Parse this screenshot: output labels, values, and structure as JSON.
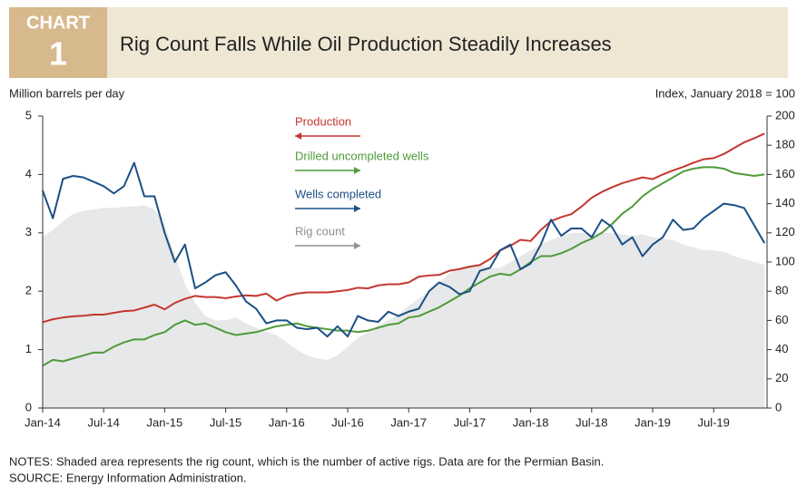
{
  "chart_data": {
    "type": "line",
    "chart_label": "CHART",
    "chart_number": "1",
    "title": "Rig Count Falls While Oil Production Steadily Increases",
    "y_label": "Million barrels per day",
    "y2_label": "Index, January 2018 = 100",
    "categories": [
      "Jan-14",
      null,
      null,
      null,
      null,
      null,
      "Jul-14",
      null,
      null,
      null,
      null,
      null,
      "Jan-15",
      null,
      null,
      null,
      null,
      null,
      "Jul-15",
      null,
      null,
      null,
      null,
      null,
      "Jan-16",
      null,
      null,
      null,
      null,
      null,
      "Jul-16",
      null,
      null,
      null,
      null,
      null,
      "Jan-17",
      null,
      null,
      null,
      null,
      null,
      "Jul-17",
      null,
      null,
      null,
      null,
      null,
      "Jan-18",
      null,
      null,
      null,
      null,
      null,
      "Jul-18",
      null,
      null,
      null,
      null,
      null,
      "Jan-19",
      null,
      null,
      null,
      null,
      null,
      "Jul-19",
      null,
      null,
      null,
      null,
      null
    ],
    "ylim": [
      0,
      5
    ],
    "yticks": [
      0,
      1,
      2,
      3,
      4,
      5
    ],
    "y2lim": [
      0,
      200
    ],
    "y2ticks": [
      0,
      20,
      40,
      60,
      80,
      100,
      120,
      140,
      160,
      180,
      200
    ],
    "series": [
      {
        "name": "Production",
        "color": "#c4372f",
        "legend_arrow": "left",
        "values": [
          1.47,
          1.52,
          1.55,
          1.57,
          1.58,
          1.6,
          1.6,
          1.63,
          1.66,
          1.67,
          1.72,
          1.77,
          1.69,
          1.8,
          1.87,
          1.92,
          1.9,
          1.9,
          1.88,
          1.91,
          1.93,
          1.92,
          1.96,
          1.84,
          1.92,
          1.96,
          1.98,
          1.98,
          1.98,
          2.0,
          2.02,
          2.06,
          2.05,
          2.1,
          2.12,
          2.12,
          2.15,
          2.25,
          2.27,
          2.28,
          2.35,
          2.38,
          2.42,
          2.45,
          2.55,
          2.7,
          2.78,
          2.88,
          2.86,
          3.05,
          3.2,
          3.27,
          3.32,
          3.45,
          3.6,
          3.7,
          3.78,
          3.85,
          3.9,
          3.95,
          3.92,
          4.0,
          4.07,
          4.13,
          4.2,
          4.26,
          4.28,
          4.35,
          4.45,
          4.55,
          4.62,
          4.7
        ]
      },
      {
        "name": "Drilled uncompleted wells",
        "color": "#4f9a3a",
        "axis": "y2",
        "legend_arrow": "right",
        "values": [
          29,
          33,
          32,
          34,
          36,
          38,
          38,
          42,
          45,
          47,
          47,
          50,
          52,
          57,
          60,
          57,
          58,
          55,
          52,
          50,
          51,
          52,
          54,
          56,
          57,
          58,
          56,
          55,
          54,
          53,
          53,
          52,
          53,
          55,
          57,
          58,
          62,
          63,
          66,
          69,
          73,
          77,
          82,
          86,
          90,
          92,
          91,
          95,
          100,
          104,
          104,
          106,
          109,
          113,
          116,
          120,
          126,
          133,
          138,
          145,
          150,
          154,
          158,
          162,
          164,
          165,
          165,
          164,
          161,
          160,
          159,
          160
        ]
      },
      {
        "name": "Wells completed",
        "color": "#1b4f86",
        "axis": "y2",
        "legend_arrow": "right",
        "values": [
          149,
          130,
          157,
          159,
          158,
          155,
          152,
          147,
          152,
          168,
          145,
          145,
          120,
          100,
          112,
          82,
          86,
          91,
          93,
          84,
          73,
          68,
          58,
          60,
          60,
          55,
          54,
          55,
          49,
          56,
          49,
          63,
          60,
          59,
          66,
          63,
          66,
          68,
          80,
          86,
          83,
          78,
          80,
          94,
          96,
          108,
          112,
          95,
          99,
          112,
          129,
          118,
          123,
          123,
          117,
          129,
          124,
          112,
          117,
          104,
          112,
          117,
          129,
          122,
          123,
          130,
          135,
          140,
          139,
          137,
          125,
          113
        ]
      },
      {
        "name": "Rig count",
        "color": "#e7e8e9",
        "legend_color": "#8a9199",
        "axis": "y2",
        "type": "area",
        "legend_arrow": "right",
        "values": [
          117,
          122,
          128,
          133,
          135,
          136,
          137,
          137,
          138,
          138,
          139,
          136,
          125,
          105,
          85,
          72,
          63,
          60,
          60,
          62,
          58,
          55,
          52,
          50,
          45,
          40,
          36,
          34,
          33,
          36,
          42,
          48,
          52,
          57,
          60,
          64,
          70,
          75,
          80,
          86,
          92,
          96,
          98,
          98,
          96,
          96,
          100,
          104,
          108,
          112,
          115,
          118,
          120,
          120,
          119,
          120,
          120,
          119,
          118,
          119,
          117,
          116,
          115,
          112,
          110,
          108,
          108,
          107,
          104,
          102,
          100,
          98
        ]
      }
    ],
    "notes": "NOTES: Shaded area represents the rig count, which is the number of active rigs. Data are for the Permian Basin.",
    "source": "SOURCE: Energy Information Administration."
  }
}
